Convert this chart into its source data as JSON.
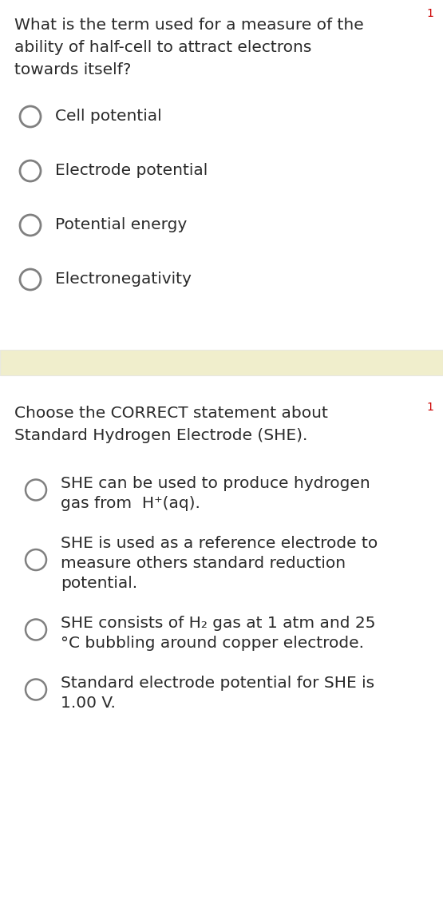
{
  "bg_color": "#ffffff",
  "separator_color": "#f0eecc",
  "separator_border_color": "#e8e8e0",
  "text_color": "#2a2a2a",
  "circle_edge_color": "#808080",
  "q1_lines": [
    "What is the term used for a measure of the",
    "ability of half-cell to attract electrons",
    "towards itself?"
  ],
  "q1_options": [
    "Cell potential",
    "Electrode potential",
    "Potential energy",
    "Electronegativity"
  ],
  "q2_lines": [
    "Choose the CORRECT statement about",
    "Standard Hydrogen Electrode (SHE)."
  ],
  "q2_options": [
    [
      "SHE can be used to produce hydrogen",
      "gas from  H⁺(aq)."
    ],
    [
      "SHE is used as a reference electrode to",
      "measure others standard reduction",
      "potential."
    ],
    [
      "SHE consists of H₂ gas at 1 atm and 25",
      "°C bubbling around copper electrode."
    ],
    [
      "Standard electrode potential for SHE is",
      "1.00 V."
    ]
  ],
  "font_size_q": 14.5,
  "font_size_opt": 14.5,
  "marker_color": "#cc0000",
  "marker_text": "1"
}
